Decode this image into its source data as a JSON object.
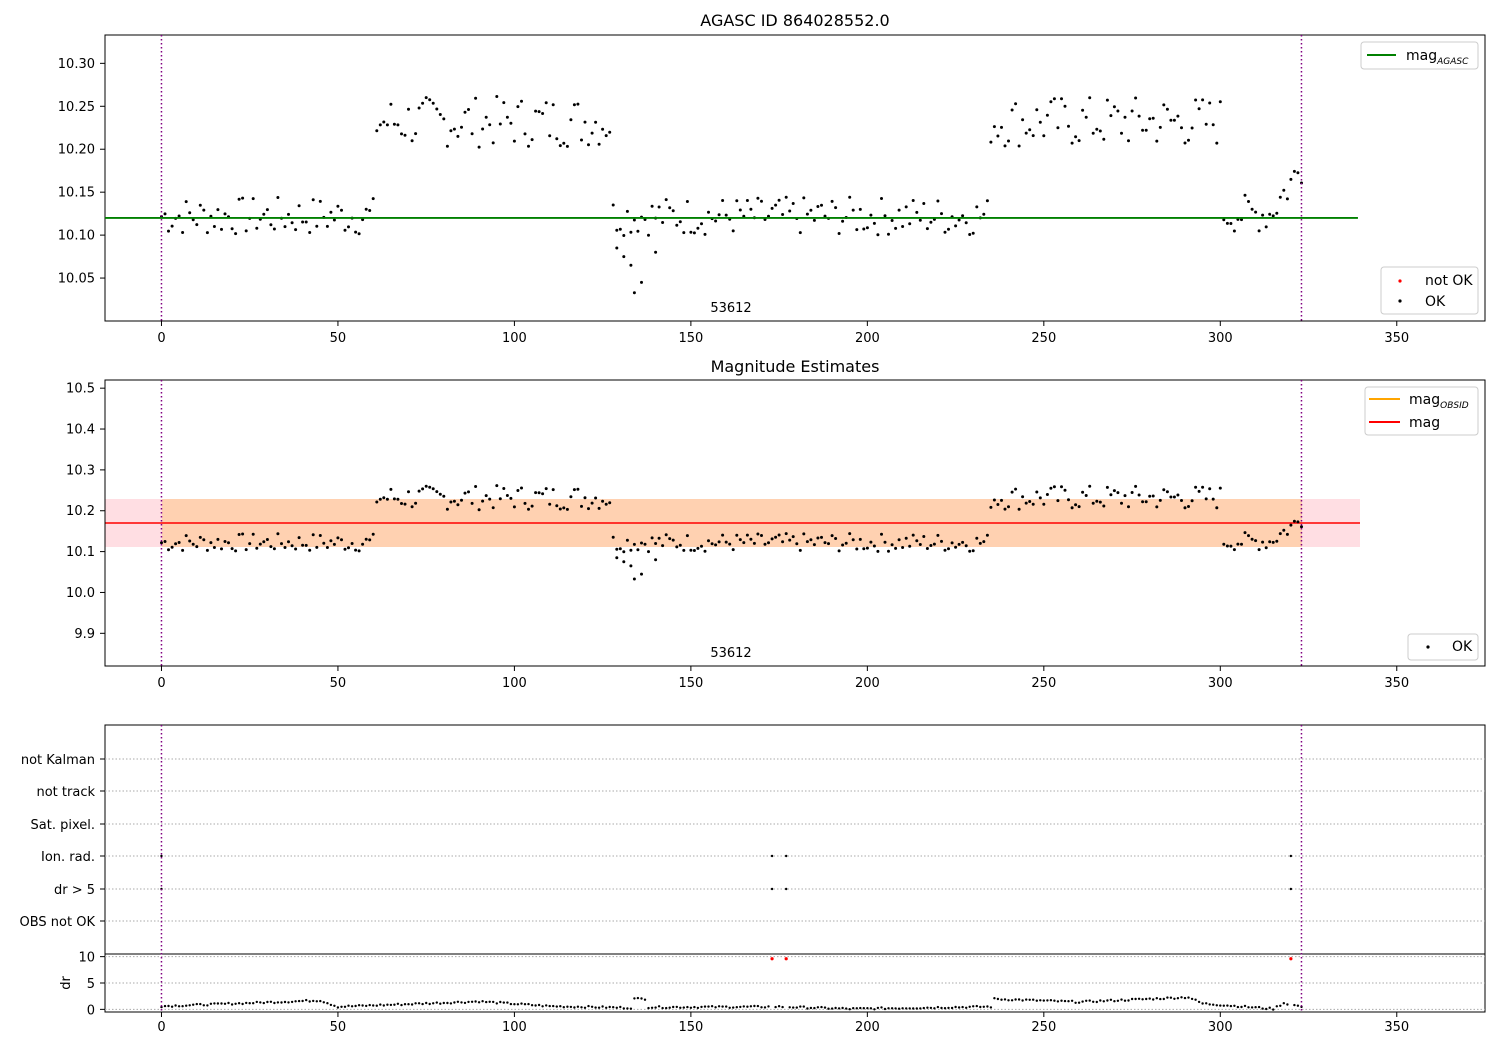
{
  "figure": {
    "panel1_title": "AGASC ID 864028552.0",
    "panel2_title": "Magnitude Estimates",
    "obsid_label": "53612"
  },
  "chart_data": [
    {
      "type": "scatter",
      "title": "AGASC ID 864028552.0",
      "xlabel": "",
      "ylabel": "",
      "xlim": [
        -16,
        375
      ],
      "ylim": [
        10.0,
        10.333
      ],
      "xticks": [
        0,
        50,
        100,
        150,
        200,
        250,
        300,
        350
      ],
      "yticks": [
        10.05,
        10.1,
        10.15,
        10.2,
        10.25,
        10.3
      ],
      "ytick_labels": [
        "10.05",
        "10.10",
        "10.15",
        "10.20",
        "10.25",
        "10.30"
      ],
      "hlines": [
        {
          "name": "mag_AGASC",
          "label_main": "mag",
          "label_sub": "AGASC",
          "y": 10.12,
          "x": [
            0,
            339
          ],
          "color": "#008000"
        }
      ],
      "vlines": [
        {
          "x": 0,
          "color": "#800080"
        },
        {
          "x": 323,
          "color": "#800080"
        }
      ],
      "annotation": "53612",
      "legend": [
        {
          "label_main": "mag",
          "label_sub": "AGASC",
          "color": "#008000",
          "marker": "line"
        },
        {
          "label": "not OK",
          "color": "#ff0000",
          "marker": "point"
        },
        {
          "label": "OK",
          "color": "#000000",
          "marker": "point"
        }
      ],
      "series": [
        {
          "name": "OK",
          "color": "#000000",
          "segments": [
            {
              "x_range": [
                0,
                60
              ],
              "pattern": "c1"
            },
            {
              "x_range": [
                61,
                127
              ],
              "pattern": "c2"
            },
            {
              "x_range": [
                128,
                234
              ],
              "pattern": "c1"
            },
            {
              "x_range": [
                235,
                300
              ],
              "pattern": "c2"
            },
            {
              "x_range": [
                301,
                323
              ],
              "pattern": "c3"
            }
          ]
        }
      ],
      "dip_points": [
        [
          129,
          10.085
        ],
        [
          131,
          10.075
        ],
        [
          133,
          10.065
        ],
        [
          134,
          10.033
        ],
        [
          136,
          10.045
        ],
        [
          140,
          10.08
        ]
      ]
    },
    {
      "type": "scatter",
      "title": "Magnitude Estimates",
      "xlim": [
        -16,
        375
      ],
      "ylim": [
        9.82,
        10.52
      ],
      "xticks": [
        0,
        50,
        100,
        150,
        200,
        250,
        300,
        350
      ],
      "yticks": [
        9.9,
        10.0,
        10.1,
        10.2,
        10.3,
        10.4,
        10.5
      ],
      "ytick_labels": [
        "9.9",
        "10.0",
        "10.1",
        "10.2",
        "10.3",
        "10.4",
        "10.5"
      ],
      "hlines": [
        {
          "name": "mag",
          "y": 10.168,
          "x": [
            -16,
            339
          ],
          "color": "#ff0000"
        }
      ],
      "bands": [
        {
          "name": "mag_OBSID band",
          "y": [
            10.108,
            10.228
          ],
          "x": [
            0,
            323
          ],
          "color": "#ffa500"
        },
        {
          "name": "mag band",
          "y": [
            10.108,
            10.228
          ],
          "x": [
            -16,
            339
          ],
          "color": "#ffb6c1"
        }
      ],
      "annotation": "53612",
      "legend": [
        {
          "label_main": "mag",
          "label_sub": "OBSID",
          "color": "#ffa500",
          "marker": "line"
        },
        {
          "label": "mag",
          "color": "#ff0000",
          "marker": "line"
        },
        {
          "label": "OK",
          "color": "#000000",
          "marker": "point"
        }
      ]
    },
    {
      "type": "scatter",
      "title": "",
      "categories": [
        "not Kalman",
        "not track",
        "Sat. pixel.",
        "Ion. rad.",
        "dr > 5",
        "OBS not OK"
      ],
      "flags": [
        {
          "category": "Ion. rad.",
          "x": [
            0,
            173,
            177,
            320
          ]
        },
        {
          "category": "dr > 5",
          "x": [
            0,
            173,
            177,
            320
          ]
        }
      ],
      "xticks": [
        0,
        50,
        100,
        150,
        200,
        250,
        300,
        350
      ]
    },
    {
      "type": "scatter",
      "ylabel": "dr",
      "ylim": [
        -0.5,
        10.5
      ],
      "yticks": [
        0,
        5,
        10
      ],
      "ytick_labels": [
        "0",
        "5",
        "10"
      ],
      "xticks": [
        0,
        50,
        100,
        150,
        200,
        250,
        300,
        350
      ],
      "red_points": [
        [
          173,
          9.6
        ],
        [
          177,
          9.6
        ],
        [
          320,
          9.6
        ]
      ],
      "series_profile": [
        [
          0,
          0.6
        ],
        [
          45,
          1.7
        ],
        [
          50,
          0.5
        ],
        [
          90,
          1.5
        ],
        [
          110,
          0.6
        ],
        [
          132,
          0.3
        ],
        [
          133,
          2.0
        ],
        [
          136,
          2.0
        ],
        [
          137,
          0.4
        ],
        [
          175,
          0.5
        ],
        [
          195,
          0.1
        ],
        [
          234,
          0.5
        ],
        [
          235,
          2.0
        ],
        [
          260,
          1.4
        ],
        [
          291,
          2.3
        ],
        [
          295,
          1.1
        ],
        [
          315,
          0.1
        ],
        [
          318,
          1.2
        ],
        [
          323,
          0.5
        ]
      ]
    }
  ]
}
